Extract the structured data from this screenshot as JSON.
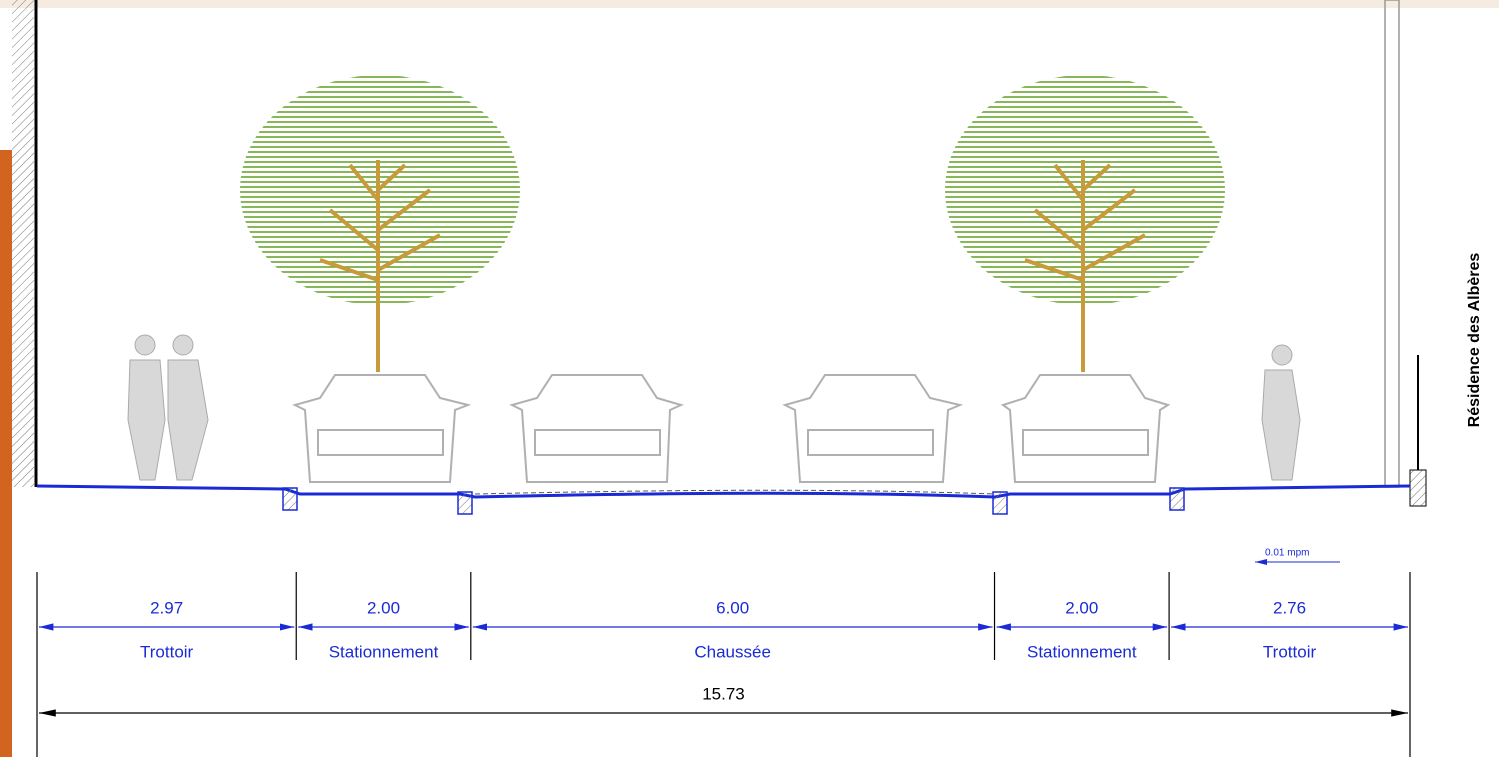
{
  "side_label": "Résidence des Albères",
  "slope": "0.01 mpm",
  "total": 15.73,
  "segments": [
    {
      "width": 2.97,
      "name": "Trottoir"
    },
    {
      "width": {
        "value": 2,
        "label": "2.00"
      },
      "name": "Stationnement"
    },
    {
      "width": {
        "value": 6,
        "label": "6.00"
      },
      "name": "Chaussée"
    },
    {
      "width": {
        "value": 2,
        "label": "2.00"
      },
      "name": "Stationnement"
    },
    {
      "width": 2.76,
      "name": "Trottoir"
    }
  ]
}
